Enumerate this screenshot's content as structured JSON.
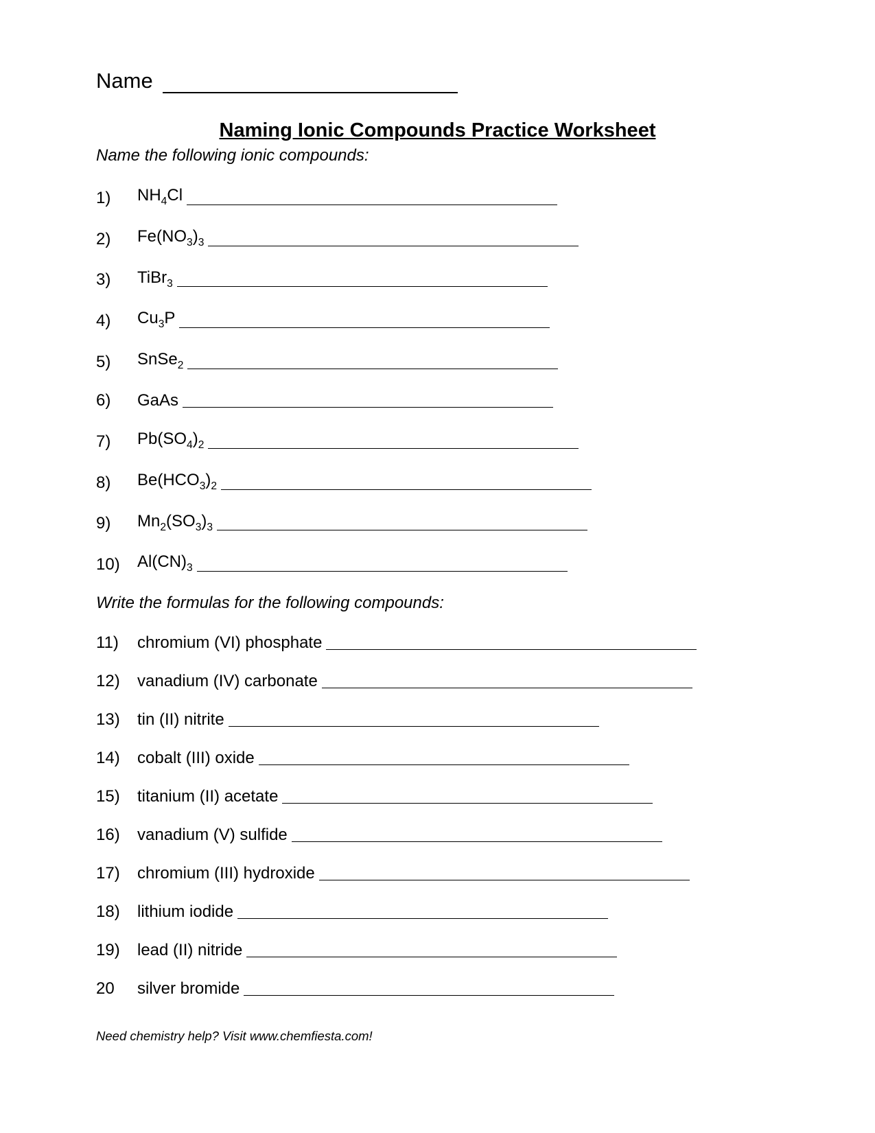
{
  "header": {
    "name_label": "Name",
    "name_blank_width": 430
  },
  "title": "Naming Ionic Compounds Practice Worksheet",
  "section1": {
    "instruction": "Name the following ionic compounds:",
    "items": [
      {
        "num": "1)",
        "formula_html": "NH<sub>4</sub>Cl",
        "line_width": 540
      },
      {
        "num": "2)",
        "formula_html": "Fe(NO<sub>3</sub>)<sub>3</sub>",
        "line_width": 540
      },
      {
        "num": "3)",
        "formula_html": "TiBr<sub>3</sub>",
        "line_width": 540
      },
      {
        "num": "4)",
        "formula_html": "Cu<sub>3</sub>P",
        "line_width": 540
      },
      {
        "num": "5)",
        "formula_html": "SnSe<sub>2</sub>",
        "line_width": 540
      },
      {
        "num": "6)",
        "formula_html": "GaAs",
        "line_width": 540
      },
      {
        "num": "7)",
        "formula_html": "Pb(SO<sub>4</sub>)<sub>2</sub>",
        "line_width": 540
      },
      {
        "num": "8)",
        "formula_html": "Be(HCO<sub>3</sub>)<sub>2</sub>",
        "line_width": 540
      },
      {
        "num": "9)",
        "formula_html": "Mn<sub>2</sub>(SO<sub>3</sub>)<sub>3</sub>",
        "line_width": 540
      },
      {
        "num": "10)",
        "formula_html": "Al(CN)<sub>3</sub>",
        "line_width": 540
      }
    ]
  },
  "section2": {
    "instruction": "Write the formulas for the following compounds:",
    "items": [
      {
        "num": "11)",
        "text": "chromium (VI) phosphate",
        "line_width": 540
      },
      {
        "num": "12)",
        "text": "vanadium (IV) carbonate",
        "line_width": 540
      },
      {
        "num": "13)",
        "text": "tin (II) nitrite",
        "line_width": 540
      },
      {
        "num": "14)",
        "text": "cobalt (III) oxide",
        "line_width": 540
      },
      {
        "num": "15)",
        "text": "titanium (II) acetate",
        "line_width": 540
      },
      {
        "num": "16)",
        "text": "vanadium (V) sulfide",
        "line_width": 540
      },
      {
        "num": "17)",
        "text": "chromium (III) hydroxide",
        "line_width": 540
      },
      {
        "num": "18)",
        "text": "lithium iodide",
        "line_width": 540
      },
      {
        "num": "19)",
        "text": "lead (II) nitride",
        "line_width": 540
      },
      {
        "num": "20",
        "text": "silver bromide",
        "line_width": 540
      }
    ]
  },
  "footer": "Need chemistry help?   Visit www.chemfiesta.com!",
  "colors": {
    "background": "#ffffff",
    "text": "#000000",
    "line": "#000000"
  },
  "typography": {
    "body_font": "Arial",
    "name_fontsize": 31,
    "title_fontsize": 29,
    "instruction_fontsize": 24,
    "item_fontsize": 24,
    "footer_fontsize": 18.5
  }
}
